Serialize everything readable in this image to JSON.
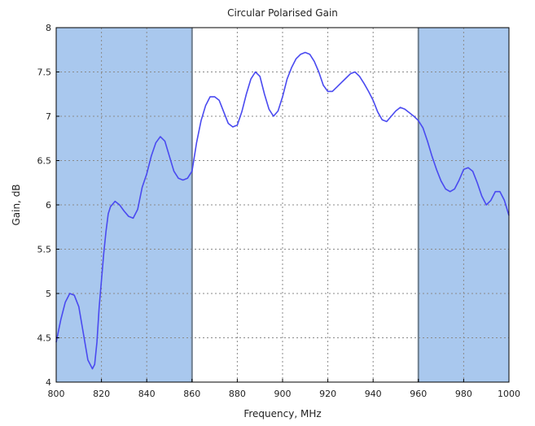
{
  "chart_data": {
    "type": "line",
    "title": "Circular Polarised Gain",
    "xlabel": "Frequency, MHz",
    "ylabel": "Gain, dB",
    "xlim": [
      800,
      1000
    ],
    "ylim": [
      4,
      8
    ],
    "xticks": [
      800,
      820,
      840,
      860,
      880,
      900,
      920,
      940,
      960,
      980,
      1000
    ],
    "xtick_labels": [
      "800",
      "820",
      "840",
      "860",
      "880",
      "900",
      "920",
      "940",
      "960",
      "980",
      "1000"
    ],
    "yticks": [
      4,
      4.5,
      5,
      5.5,
      6,
      6.5,
      7,
      7.5,
      8
    ],
    "ytick_labels": [
      "4",
      "4.5",
      "5",
      "5.5",
      "6",
      "6.5",
      "7",
      "7.5",
      "8"
    ],
    "grid": true,
    "shaded_bands": [
      {
        "x_start": 800,
        "x_end": 860,
        "color": "#a9c8ee"
      },
      {
        "x_start": 960,
        "x_end": 1000,
        "color": "#a9c8ee"
      }
    ],
    "band_edge_color": "#6f7f8f",
    "series": [
      {
        "color": "#4a4af0",
        "x": [
          800,
          802,
          804,
          806,
          808,
          810,
          812,
          814,
          816,
          817,
          818,
          819,
          820,
          821,
          822,
          823,
          824,
          826,
          828,
          830,
          832,
          834,
          836,
          838,
          840,
          842,
          844,
          846,
          848,
          850,
          852,
          854,
          856,
          858,
          860,
          862,
          864,
          866,
          868,
          870,
          872,
          874,
          876,
          878,
          880,
          882,
          884,
          886,
          888,
          890,
          892,
          894,
          896,
          898,
          900,
          902,
          904,
          906,
          908,
          910,
          912,
          914,
          916,
          918,
          920,
          922,
          924,
          926,
          928,
          930,
          932,
          934,
          936,
          938,
          940,
          942,
          944,
          946,
          948,
          950,
          952,
          954,
          956,
          958,
          960,
          962,
          964,
          966,
          968,
          970,
          972,
          974,
          976,
          978,
          980,
          982,
          984,
          986,
          988,
          990,
          992,
          994,
          996,
          998,
          1000
        ],
        "y": [
          4.45,
          4.7,
          4.9,
          5.0,
          4.98,
          4.85,
          4.55,
          4.25,
          4.15,
          4.2,
          4.45,
          4.85,
          5.15,
          5.45,
          5.7,
          5.9,
          5.98,
          6.04,
          6.0,
          5.93,
          5.87,
          5.85,
          5.95,
          6.2,
          6.35,
          6.55,
          6.7,
          6.77,
          6.72,
          6.55,
          6.38,
          6.3,
          6.28,
          6.3,
          6.38,
          6.7,
          6.95,
          7.12,
          7.22,
          7.22,
          7.18,
          7.05,
          6.92,
          6.88,
          6.9,
          7.05,
          7.25,
          7.42,
          7.5,
          7.45,
          7.25,
          7.08,
          7.0,
          7.06,
          7.22,
          7.42,
          7.55,
          7.65,
          7.7,
          7.72,
          7.7,
          7.62,
          7.5,
          7.35,
          7.28,
          7.28,
          7.33,
          7.38,
          7.43,
          7.48,
          7.5,
          7.45,
          7.37,
          7.28,
          7.18,
          7.05,
          6.96,
          6.94,
          7.0,
          7.06,
          7.1,
          7.08,
          7.04,
          7.0,
          6.95,
          6.87,
          6.72,
          6.55,
          6.4,
          6.27,
          6.18,
          6.15,
          6.18,
          6.28,
          6.4,
          6.42,
          6.38,
          6.25,
          6.1,
          6.0,
          6.05,
          6.15,
          6.15,
          6.05,
          5.88
        ]
      }
    ]
  }
}
